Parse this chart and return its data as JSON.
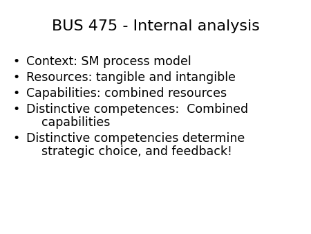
{
  "title": "BUS 475 - Internal analysis",
  "title_fontsize": 16,
  "title_color": "#000000",
  "background_color": "#ffffff",
  "bullet_char": "•",
  "bullet_items": [
    [
      "Context: SM process model"
    ],
    [
      "Resources: tangible and intangible"
    ],
    [
      "Capabilities: combined resources"
    ],
    [
      "Distinctive competences:  Combined",
      "    capabilities"
    ],
    [
      "Distinctive competencies determine",
      "    strategic choice, and feedback!"
    ]
  ],
  "bullet_fontsize": 12.5,
  "bullet_color": "#000000",
  "font_family": "DejaVu Sans"
}
